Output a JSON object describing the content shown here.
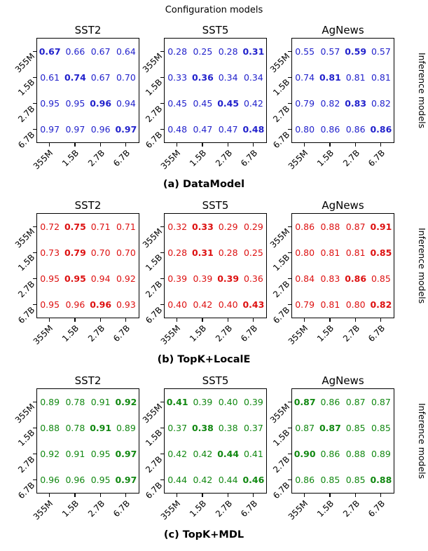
{
  "figure": {
    "top_label": "Configuration models",
    "right_label": "Inference models",
    "row_ticks": [
      "355M",
      "1.5B",
      "2.7B",
      "6.7B"
    ],
    "col_ticks": [
      "355M",
      "1.5B",
      "2.7B",
      "6.7B"
    ]
  },
  "chart_data": [
    {
      "type": "heatmap",
      "caption": "(a) DataModel",
      "color": "#2222cc",
      "x_axis": "Configuration models",
      "y_axis": "Inference models",
      "panels": [
        {
          "title": "SST2",
          "values": [
            [
              "0.67",
              "0.66",
              "0.67",
              "0.64"
            ],
            [
              "0.61",
              "0.74",
              "0.67",
              "0.70"
            ],
            [
              "0.95",
              "0.95",
              "0.96",
              "0.94"
            ],
            [
              "0.97",
              "0.97",
              "0.96",
              "0.97"
            ]
          ],
          "bold": [
            [
              1,
              0,
              0,
              0
            ],
            [
              0,
              1,
              0,
              0
            ],
            [
              0,
              0,
              1,
              0
            ],
            [
              0,
              0,
              0,
              1
            ]
          ]
        },
        {
          "title": "SST5",
          "values": [
            [
              "0.28",
              "0.25",
              "0.28",
              "0.31"
            ],
            [
              "0.33",
              "0.36",
              "0.34",
              "0.34"
            ],
            [
              "0.45",
              "0.45",
              "0.45",
              "0.42"
            ],
            [
              "0.48",
              "0.47",
              "0.47",
              "0.48"
            ]
          ],
          "bold": [
            [
              0,
              0,
              0,
              1
            ],
            [
              0,
              1,
              0,
              0
            ],
            [
              0,
              0,
              1,
              0
            ],
            [
              0,
              0,
              0,
              1
            ]
          ]
        },
        {
          "title": "AgNews",
          "values": [
            [
              "0.55",
              "0.57",
              "0.59",
              "0.57"
            ],
            [
              "0.74",
              "0.81",
              "0.81",
              "0.81"
            ],
            [
              "0.79",
              "0.82",
              "0.83",
              "0.82"
            ],
            [
              "0.80",
              "0.86",
              "0.86",
              "0.86"
            ]
          ],
          "bold": [
            [
              0,
              0,
              1,
              0
            ],
            [
              0,
              1,
              0,
              0
            ],
            [
              0,
              0,
              1,
              0
            ],
            [
              0,
              0,
              0,
              1
            ]
          ]
        }
      ]
    },
    {
      "type": "heatmap",
      "caption": "(b) TopK+LocalE",
      "color": "#dd1111",
      "x_axis": "Configuration models",
      "y_axis": "Inference models",
      "panels": [
        {
          "title": "SST2",
          "values": [
            [
              "0.72",
              "0.75",
              "0.71",
              "0.71"
            ],
            [
              "0.73",
              "0.79",
              "0.70",
              "0.70"
            ],
            [
              "0.95",
              "0.95",
              "0.94",
              "0.92"
            ],
            [
              "0.95",
              "0.96",
              "0.96",
              "0.93"
            ]
          ],
          "bold": [
            [
              0,
              1,
              0,
              0
            ],
            [
              0,
              1,
              0,
              0
            ],
            [
              0,
              1,
              0,
              0
            ],
            [
              0,
              0,
              1,
              0
            ]
          ]
        },
        {
          "title": "SST5",
          "values": [
            [
              "0.32",
              "0.33",
              "0.29",
              "0.29"
            ],
            [
              "0.28",
              "0.31",
              "0.28",
              "0.25"
            ],
            [
              "0.39",
              "0.39",
              "0.39",
              "0.36"
            ],
            [
              "0.40",
              "0.42",
              "0.40",
              "0.43"
            ]
          ],
          "bold": [
            [
              0,
              1,
              0,
              0
            ],
            [
              0,
              1,
              0,
              0
            ],
            [
              0,
              0,
              1,
              0
            ],
            [
              0,
              0,
              0,
              1
            ]
          ]
        },
        {
          "title": "AgNews",
          "values": [
            [
              "0.86",
              "0.88",
              "0.87",
              "0.91"
            ],
            [
              "0.80",
              "0.81",
              "0.81",
              "0.85"
            ],
            [
              "0.84",
              "0.83",
              "0.86",
              "0.85"
            ],
            [
              "0.79",
              "0.81",
              "0.80",
              "0.82"
            ]
          ],
          "bold": [
            [
              0,
              0,
              0,
              1
            ],
            [
              0,
              0,
              0,
              1
            ],
            [
              0,
              0,
              1,
              0
            ],
            [
              0,
              0,
              0,
              1
            ]
          ]
        }
      ]
    },
    {
      "type": "heatmap",
      "caption": "(c) TopK+MDL",
      "color": "#118811",
      "x_axis": "Configuration models",
      "y_axis": "Inference models",
      "panels": [
        {
          "title": "SST2",
          "values": [
            [
              "0.89",
              "0.78",
              "0.91",
              "0.92"
            ],
            [
              "0.88",
              "0.78",
              "0.91",
              "0.89"
            ],
            [
              "0.92",
              "0.91",
              "0.95",
              "0.97"
            ],
            [
              "0.96",
              "0.96",
              "0.95",
              "0.97"
            ]
          ],
          "bold": [
            [
              0,
              0,
              0,
              1
            ],
            [
              0,
              0,
              1,
              0
            ],
            [
              0,
              0,
              0,
              1
            ],
            [
              0,
              0,
              0,
              1
            ]
          ]
        },
        {
          "title": "SST5",
          "values": [
            [
              "0.41",
              "0.39",
              "0.40",
              "0.39"
            ],
            [
              "0.37",
              "0.38",
              "0.38",
              "0.37"
            ],
            [
              "0.42",
              "0.42",
              "0.44",
              "0.41"
            ],
            [
              "0.44",
              "0.42",
              "0.44",
              "0.46"
            ]
          ],
          "bold": [
            [
              1,
              0,
              0,
              0
            ],
            [
              0,
              1,
              0,
              0
            ],
            [
              0,
              0,
              1,
              0
            ],
            [
              0,
              0,
              0,
              1
            ]
          ]
        },
        {
          "title": "AgNews",
          "values": [
            [
              "0.87",
              "0.86",
              "0.87",
              "0.87"
            ],
            [
              "0.87",
              "0.87",
              "0.85",
              "0.85"
            ],
            [
              "0.90",
              "0.86",
              "0.88",
              "0.89"
            ],
            [
              "0.86",
              "0.85",
              "0.85",
              "0.88"
            ]
          ],
          "bold": [
            [
              1,
              0,
              0,
              0
            ],
            [
              0,
              1,
              0,
              0
            ],
            [
              1,
              0,
              0,
              0
            ],
            [
              0,
              0,
              0,
              1
            ]
          ]
        }
      ]
    }
  ]
}
